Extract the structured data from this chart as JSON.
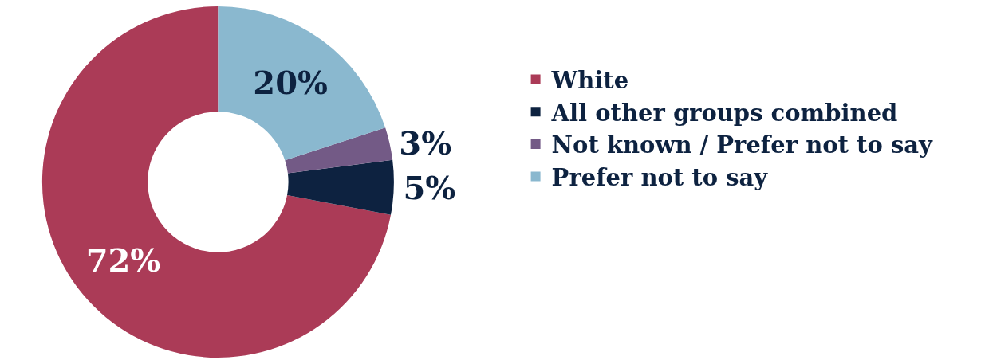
{
  "chart_data": {
    "type": "donut",
    "categories": [
      "White",
      "All other groups combined",
      "Not known / Prefer not to say",
      "Prefer not to say"
    ],
    "values": [
      72,
      5,
      3,
      20
    ],
    "colors": [
      "#ab3b57",
      "#0d2240",
      "#735a86",
      "#8ab8cf"
    ],
    "value_labels": [
      "72%",
      "5%",
      "3%",
      "20%"
    ],
    "legend": "right"
  }
}
